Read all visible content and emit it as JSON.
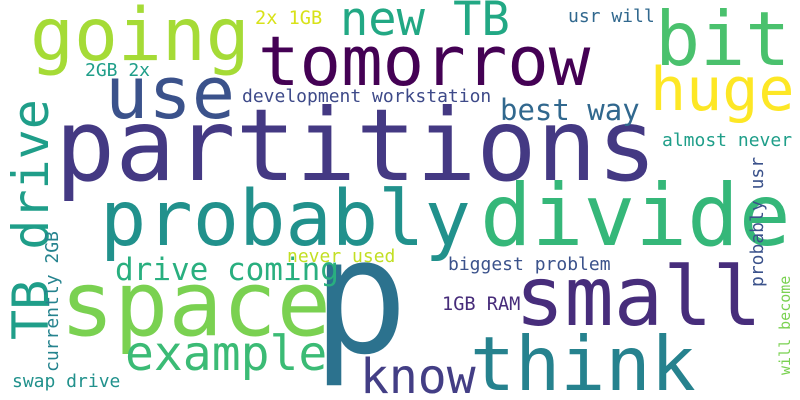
{
  "words": [
    {
      "text": "partitions",
      "color": "#443983"
    },
    {
      "text": "p",
      "color": "#2c728e"
    },
    {
      "text": "tomorrow",
      "color": "#440154"
    },
    {
      "text": "going",
      "color": "#a5db36"
    },
    {
      "text": "bit",
      "color": "#4ac16d"
    },
    {
      "text": "use",
      "color": "#3b528b"
    },
    {
      "text": "new TB",
      "color": "#22a884"
    },
    {
      "text": "huge",
      "color": "#fde725"
    },
    {
      "text": "probably",
      "color": "#21918c"
    },
    {
      "text": "divide",
      "color": "#35b779"
    },
    {
      "text": "space",
      "color": "#7ad151"
    },
    {
      "text": "small",
      "color": "#472d7b"
    },
    {
      "text": "think",
      "color": "#26828e"
    },
    {
      "text": "know",
      "color": "#433e85"
    },
    {
      "text": "example",
      "color": "#3bbb75"
    },
    {
      "text": "drive coming",
      "color": "#29af7f"
    },
    {
      "text": "TB drive",
      "color": "#1f9e89"
    },
    {
      "text": "currently 2GB",
      "color": "#25838e"
    },
    {
      "text": "swap drive",
      "color": "#21918c"
    },
    {
      "text": "development workstation",
      "color": "#3e4a89"
    },
    {
      "text": "best way",
      "color": "#31688e"
    },
    {
      "text": "2x 1GB",
      "color": "#d8e219"
    },
    {
      "text": "2GB 2x",
      "color": "#1f9e89"
    },
    {
      "text": "usr will",
      "color": "#31688e"
    },
    {
      "text": "almost never",
      "color": "#1f9e89"
    },
    {
      "text": "probably usr",
      "color": "#3b528b"
    },
    {
      "text": "will become",
      "color": "#7ad151"
    },
    {
      "text": "never used",
      "color": "#c2df23"
    },
    {
      "text": "biggest problem",
      "color": "#3b528b"
    },
    {
      "text": "1GB RAM",
      "color": "#472c7a"
    }
  ]
}
